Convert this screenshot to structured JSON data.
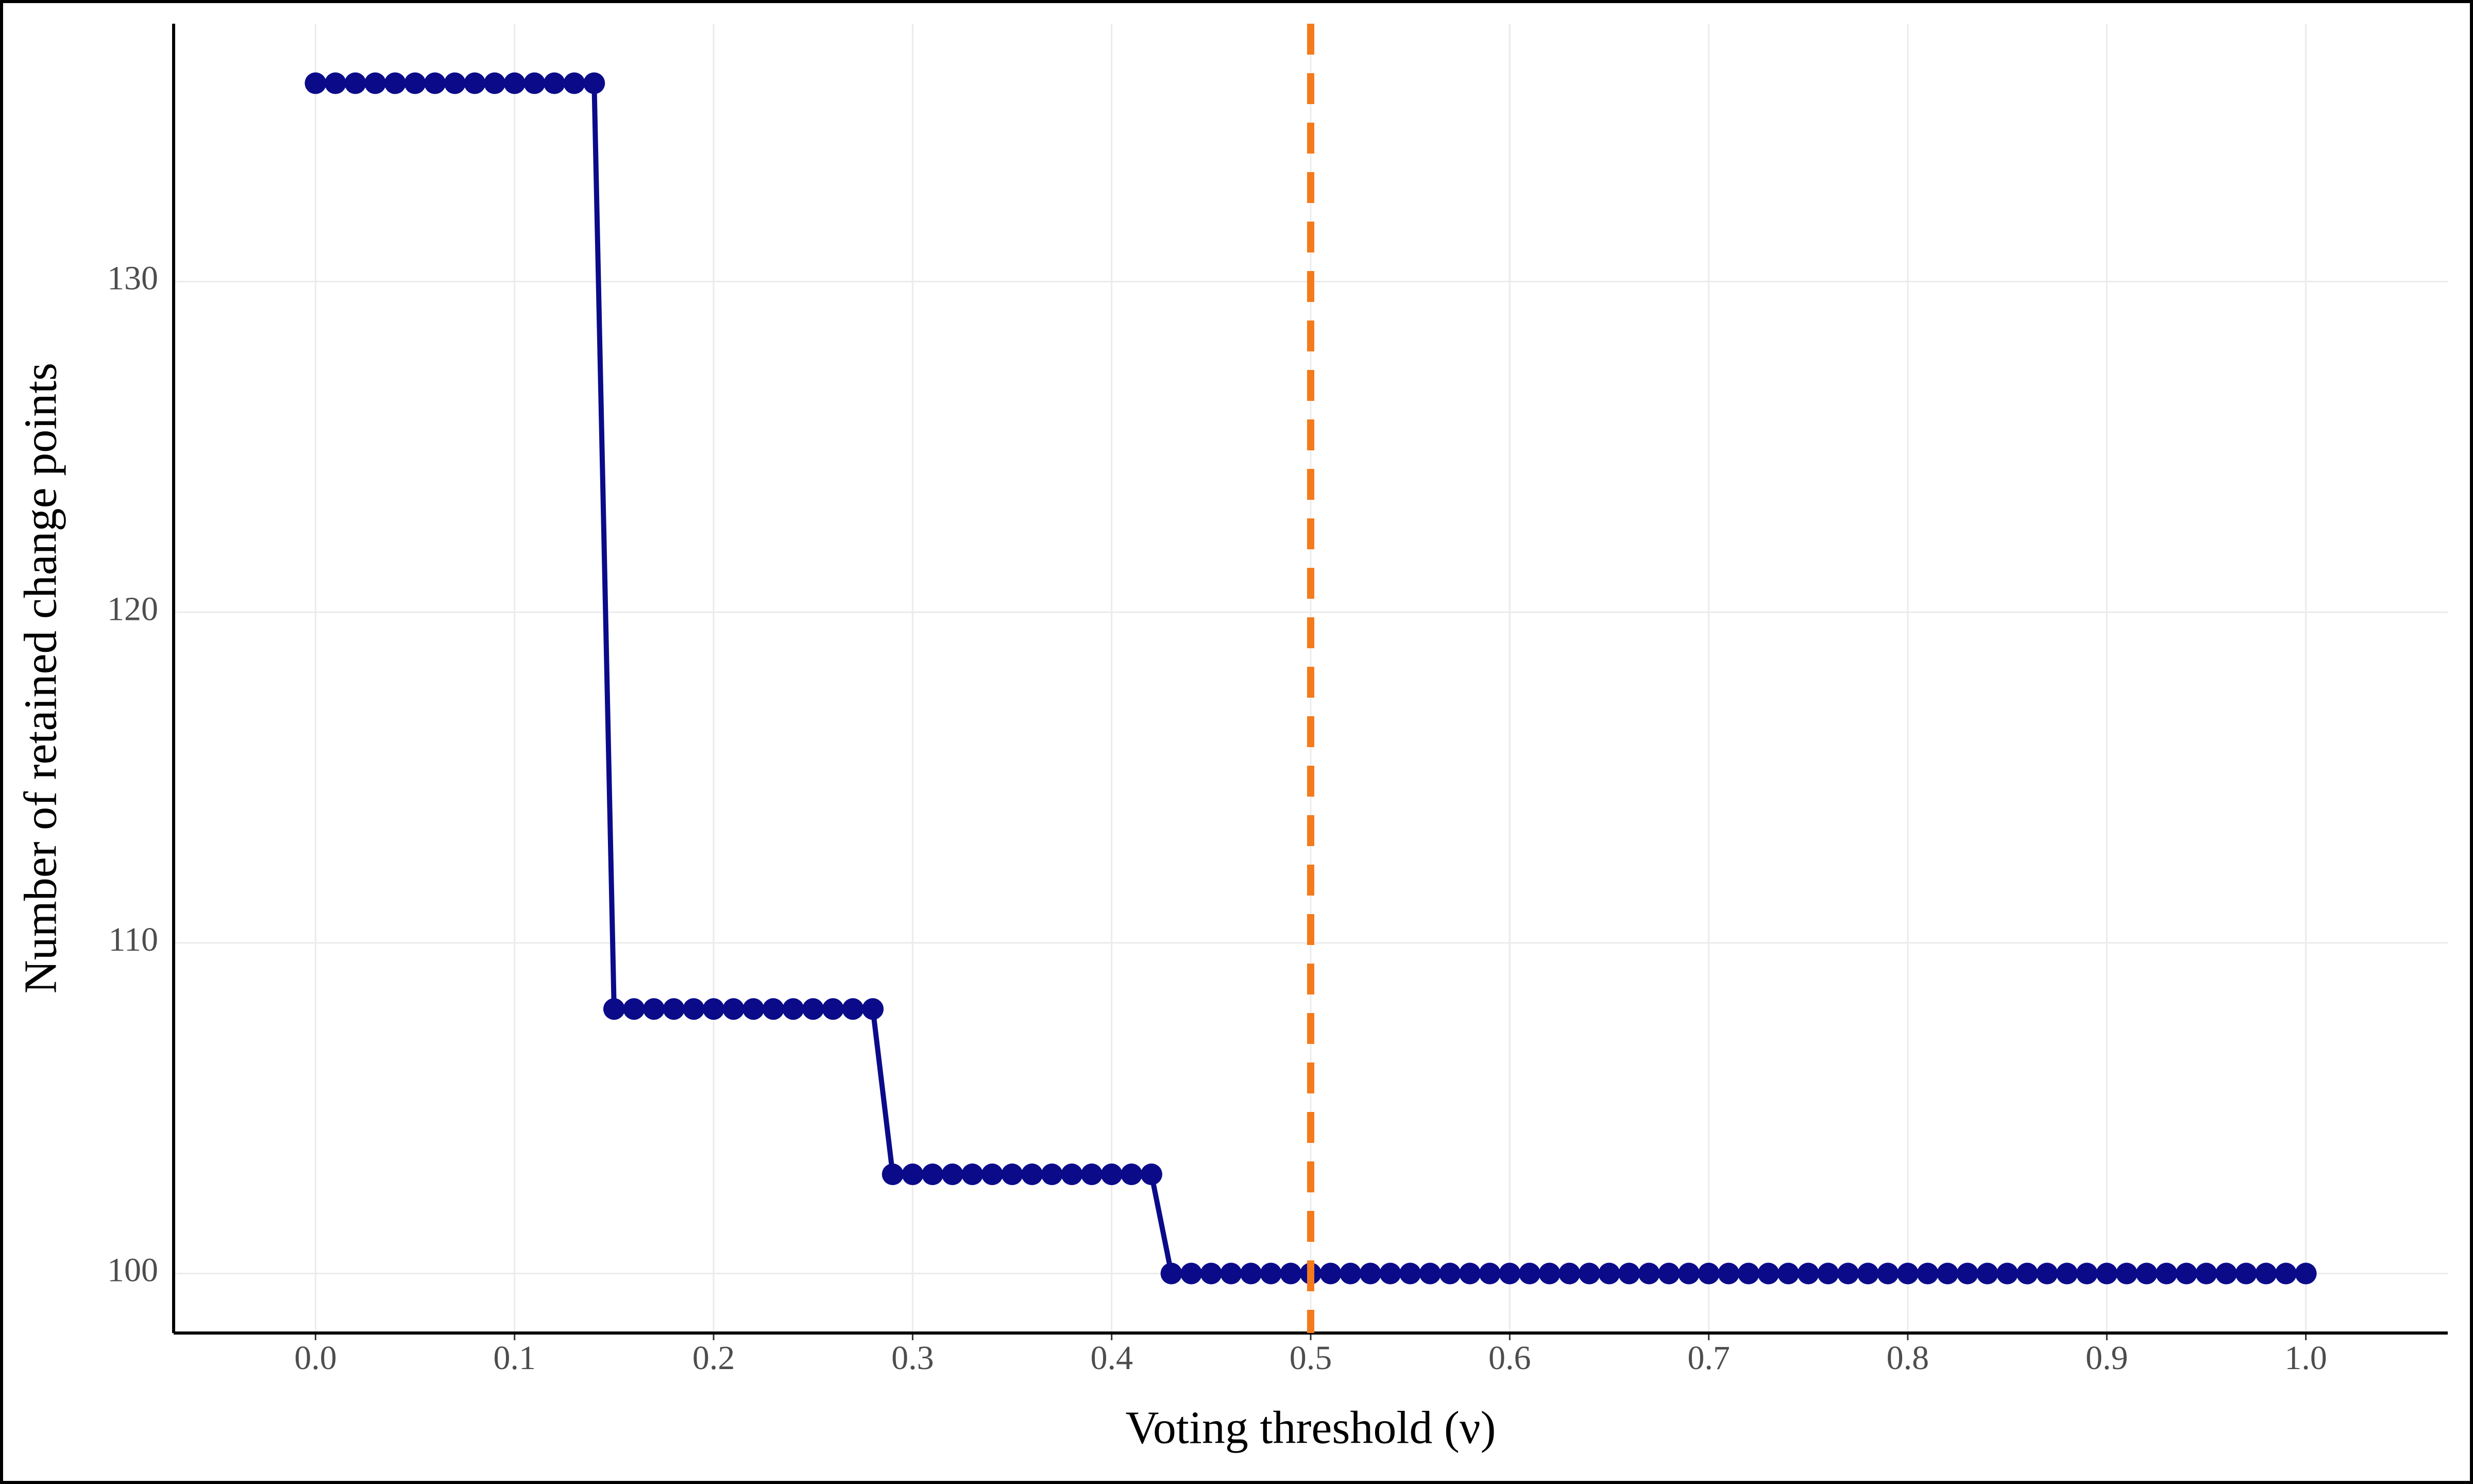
{
  "chart_data": {
    "type": "line",
    "xlabel": "Voting threshold (ν)",
    "ylabel": "Number of retained change points",
    "x": [
      0,
      0.01,
      0.02,
      0.03,
      0.04,
      0.05,
      0.06,
      0.07,
      0.08,
      0.09,
      0.1,
      0.11,
      0.12,
      0.13,
      0.14,
      0.15,
      0.16,
      0.17,
      0.18,
      0.19,
      0.2,
      0.21,
      0.22,
      0.23,
      0.24,
      0.25,
      0.26,
      0.27,
      0.28,
      0.29,
      0.3,
      0.31,
      0.32,
      0.33,
      0.34,
      0.35,
      0.36,
      0.37,
      0.38,
      0.39,
      0.4,
      0.41,
      0.42,
      0.43,
      0.44,
      0.45,
      0.46,
      0.47,
      0.48,
      0.49,
      0.5,
      0.51,
      0.52,
      0.53,
      0.54,
      0.55,
      0.56,
      0.57,
      0.58,
      0.59,
      0.6,
      0.61,
      0.62,
      0.63,
      0.64,
      0.65,
      0.66,
      0.67,
      0.68,
      0.69,
      0.7,
      0.71,
      0.72,
      0.73,
      0.74,
      0.75,
      0.76,
      0.77,
      0.78,
      0.79,
      0.8,
      0.81,
      0.82,
      0.83,
      0.84,
      0.85,
      0.86,
      0.87,
      0.88,
      0.89,
      0.9,
      0.91,
      0.92,
      0.93,
      0.94,
      0.95,
      0.96,
      0.97,
      0.98,
      0.99,
      1
    ],
    "values": [
      136,
      136,
      136,
      136,
      136,
      136,
      136,
      136,
      136,
      136,
      136,
      136,
      136,
      136,
      136,
      108,
      108,
      108,
      108,
      108,
      108,
      108,
      108,
      108,
      108,
      108,
      108,
      108,
      108,
      103,
      103,
      103,
      103,
      103,
      103,
      103,
      103,
      103,
      103,
      103,
      103,
      103,
      103,
      100,
      100,
      100,
      100,
      100,
      100,
      100,
      100,
      100,
      100,
      100,
      100,
      100,
      100,
      100,
      100,
      100,
      100,
      100,
      100,
      100,
      100,
      100,
      100,
      100,
      100,
      100,
      100,
      100,
      100,
      100,
      100,
      100,
      100,
      100,
      100,
      100,
      100,
      100,
      100,
      100,
      100,
      100,
      100,
      100,
      100,
      100,
      100,
      100,
      100,
      100,
      100,
      100,
      100,
      100,
      100,
      100,
      100
    ],
    "color": "#0b0b8a",
    "vline": 0.5,
    "vline_color": "#f47a1c",
    "xlim": [
      -0.0713,
      1.0713
    ],
    "ylim": [
      98.2,
      137.8
    ],
    "xticks": [
      {
        "value": 0,
        "label": "0.0"
      },
      0.1,
      0.2,
      0.3,
      0.4,
      0.5,
      0.6,
      0.7,
      0.8,
      0.9,
      {
        "value": 1,
        "label": "1.0"
      }
    ],
    "yticks": [
      100,
      110,
      120,
      130
    ],
    "grid": true
  }
}
